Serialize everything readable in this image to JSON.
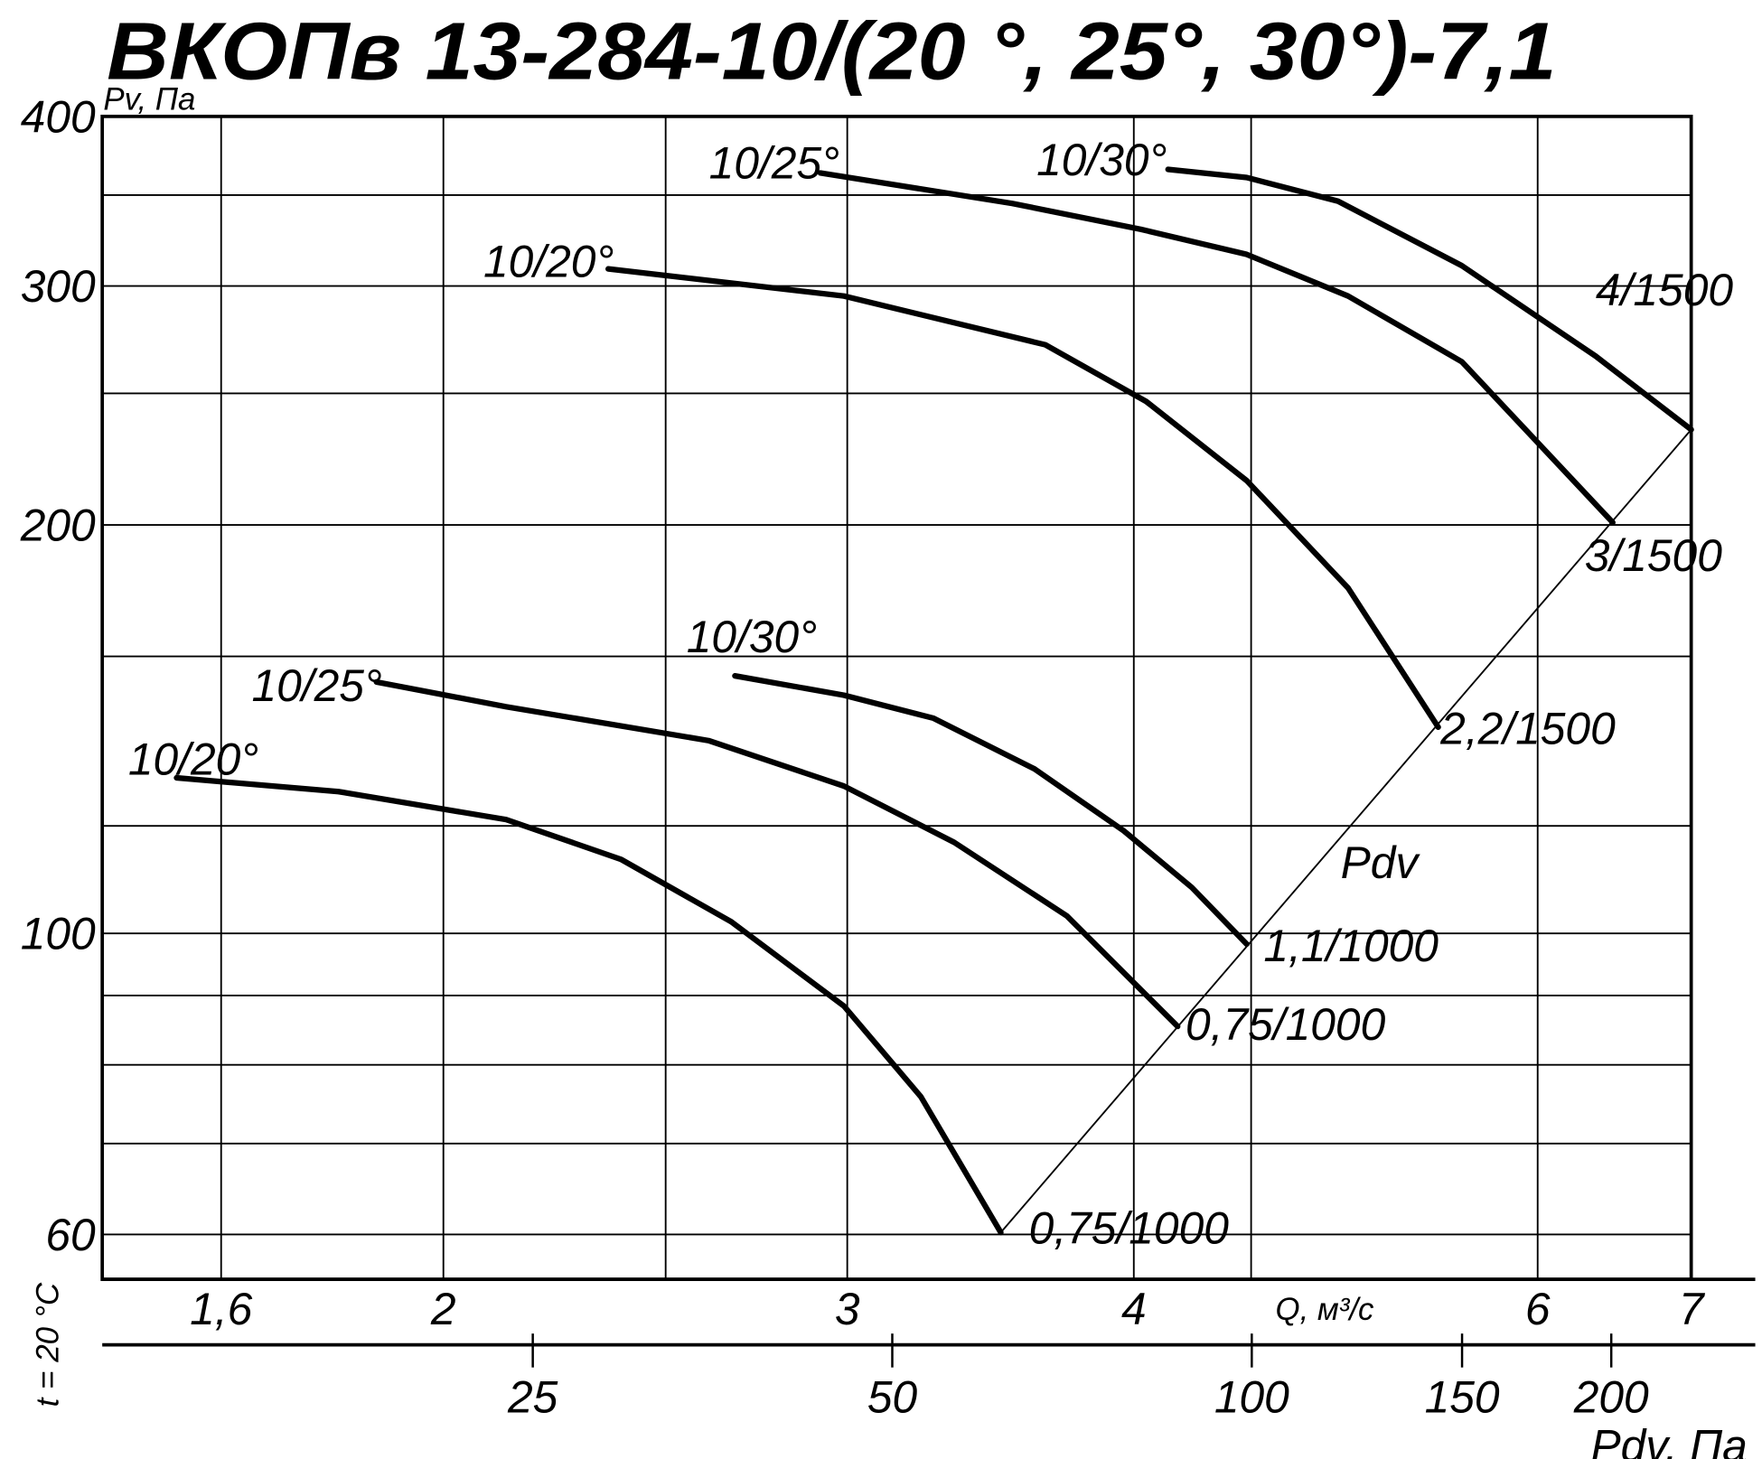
{
  "chart_data": {
    "type": "line",
    "title": "ВКОПв 13-284-10/(20 °, 25°, 30°)-7,1",
    "y_label": "Pv, Па",
    "x_label": "Q, м³/с",
    "side_label": "t = 20 °С",
    "log_x": true,
    "log_y": true,
    "xlim": [
      1.42,
      7
    ],
    "ylim": [
      55.6,
      400
    ],
    "xticks": [
      {
        "value": 1.6,
        "label": "1,6"
      },
      2,
      3,
      4,
      6,
      7
    ],
    "x_minor_ticks": [
      2.5,
      4.5
    ],
    "yticks": [
      60,
      100,
      200,
      300,
      400
    ],
    "y_minor_ticks": [
      70,
      80,
      90,
      120,
      160,
      250,
      350
    ],
    "series": [
      {
        "name": "10/20°",
        "end_label": "0,75/1000",
        "color": "#000000",
        "x": [
          1.53,
          1.8,
          2.13,
          2.39,
          2.67,
          2.99,
          3.23,
          3.5
        ],
        "values": [
          130.2,
          127.2,
          121.3,
          113.4,
          102.0,
          88.4,
          75.8,
          60.2
        ]
      },
      {
        "name": "10/25°",
        "end_label": "0,75/1000",
        "color": "#000000",
        "x": [
          1.87,
          2.13,
          2.61,
          2.99,
          3.34,
          3.74,
          4.18
        ],
        "values": [
          153.2,
          146.9,
          138.7,
          128.4,
          116.7,
          103.0,
          85.4
        ]
      },
      {
        "name": "10/30°",
        "end_label": "1,1/1000",
        "color": "#000000",
        "x": [
          2.68,
          2.99,
          3.27,
          3.62,
          3.96,
          4.24,
          4.48
        ],
        "values": [
          154.8,
          149.8,
          144.1,
          132.2,
          119.0,
          108.1,
          98.2
        ]
      },
      {
        "name": "10/20°",
        "end_label": "2,2/1500",
        "color": "#000000",
        "x": [
          2.36,
          2.99,
          3.66,
          4.05,
          4.48,
          4.96,
          5.43
        ],
        "values": [
          308.8,
          294.9,
          271.5,
          246.6,
          215.6,
          179.7,
          141.9
        ]
      },
      {
        "name": "10/25°",
        "end_label": "3/1500",
        "color": "#000000",
        "x": [
          2.92,
          3.54,
          4.03,
          4.48,
          4.96,
          5.56,
          6.47
        ],
        "values": [
          363.4,
          345.1,
          330.2,
          316.5,
          294.9,
          263.8,
          200.8
        ]
      },
      {
        "name": "10/30°",
        "end_label": "4/1500",
        "color": "#000000",
        "x": [
          4.14,
          4.48,
          4.91,
          5.56,
          6.36,
          7.0
        ],
        "values": [
          365.6,
          360.6,
          346.4,
          310.5,
          266.3,
          235.1
        ]
      }
    ],
    "pdv_line": {
      "name": "Pdv",
      "x": [
        3.5,
        7.0
      ],
      "values": [
        60.2,
        235.1
      ]
    },
    "pdv_axis": {
      "label": "Pdv, Па",
      "lim": [
        10.9,
        264
      ],
      "ticks": [
        25,
        50,
        100,
        150,
        200
      ]
    }
  }
}
